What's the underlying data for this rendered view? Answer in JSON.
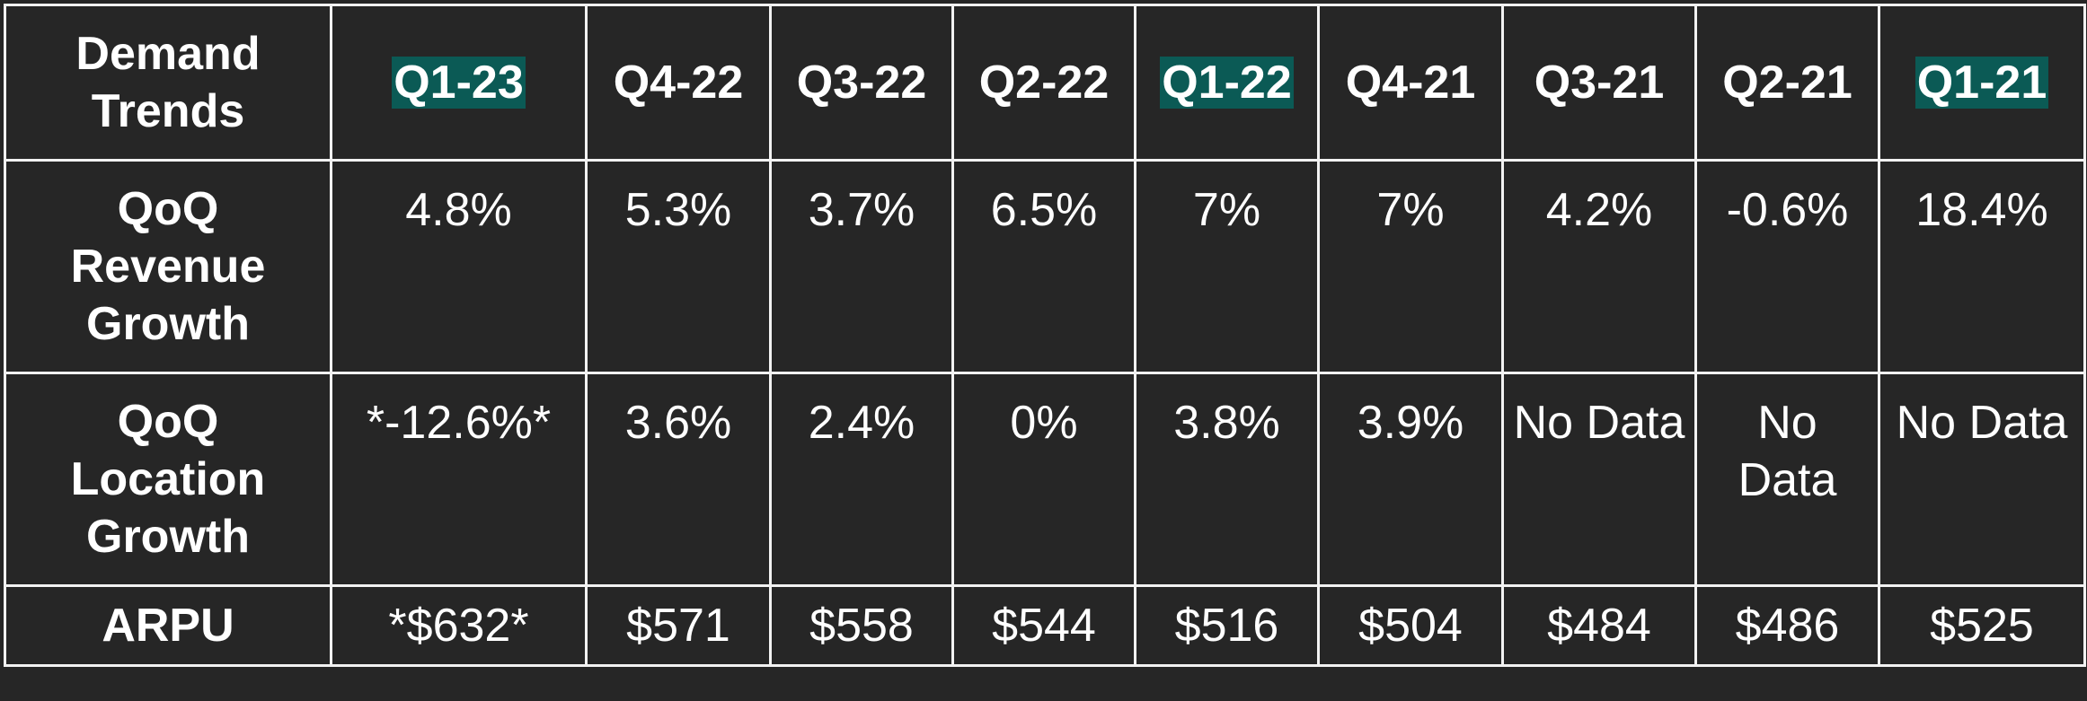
{
  "table": {
    "header": [
      "Demand Trends",
      "Q1-23",
      "Q4-22",
      "Q3-22",
      "Q2-22",
      "Q1-22",
      "Q4-21",
      "Q3-21",
      "Q2-21",
      "Q1-21"
    ],
    "rows": [
      [
        "QoQ Revenue Growth",
        "4.8%",
        "5.3%",
        "3.7%",
        "6.5%",
        "7%",
        "7%",
        "4.2%",
        "-0.6%",
        "18.4%"
      ],
      [
        "QoQ Location Growth",
        "*-12.6%*",
        "3.6%",
        "2.4%",
        "0%",
        "3.8%",
        "3.9%",
        "No Data",
        "No Data",
        "No Data"
      ],
      [
        "ARPU",
        "*$632*",
        "$571",
        "$558",
        "$544",
        "$516",
        "$504",
        "$484",
        "$486",
        "$525"
      ]
    ]
  }
}
